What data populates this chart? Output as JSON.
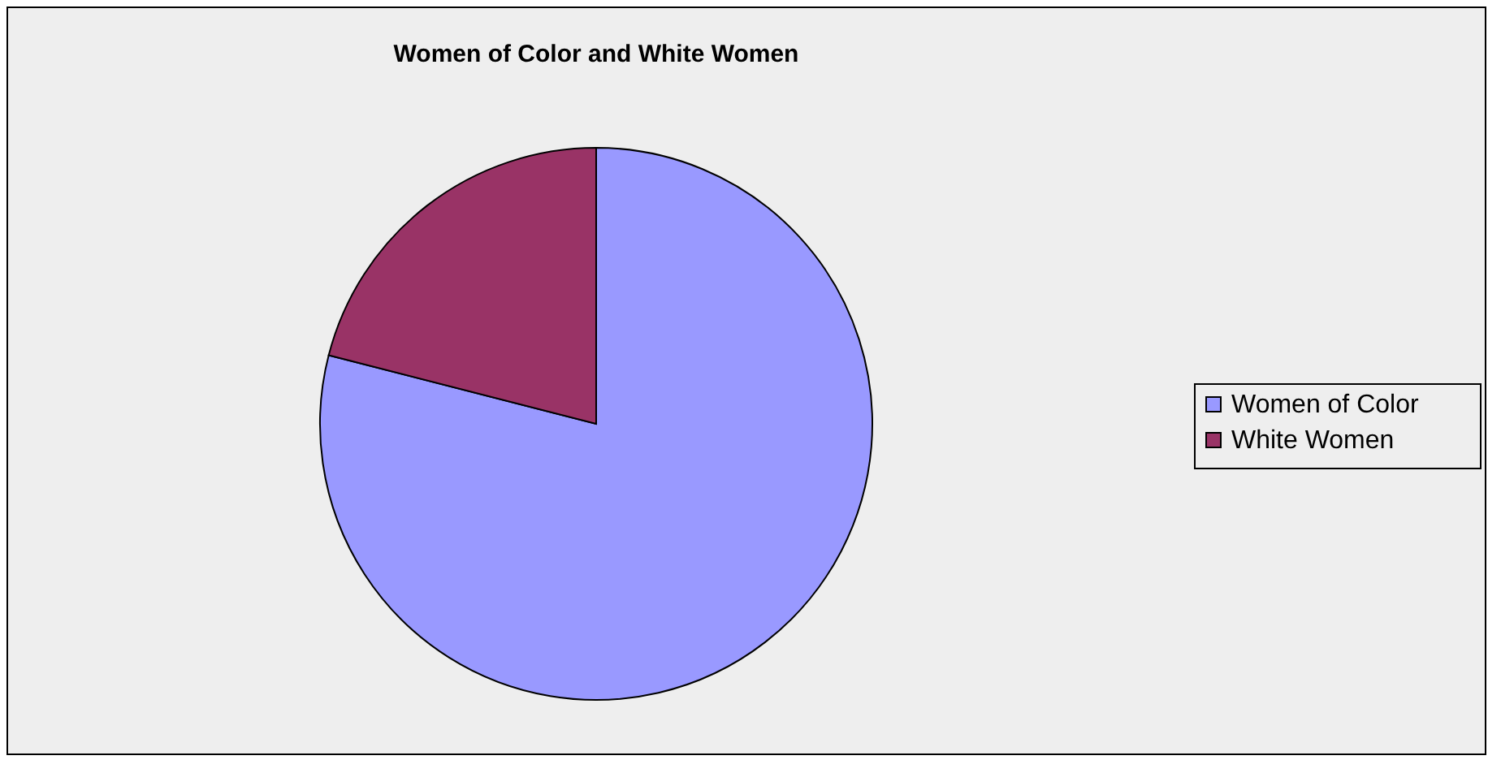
{
  "chart_data": {
    "type": "pie",
    "title": "Women of Color and White Women",
    "categories": [
      "Women of Color",
      "White Women"
    ],
    "values": [
      79,
      21
    ],
    "colors": [
      "#9999ff",
      "#993366"
    ],
    "legend": "right"
  }
}
